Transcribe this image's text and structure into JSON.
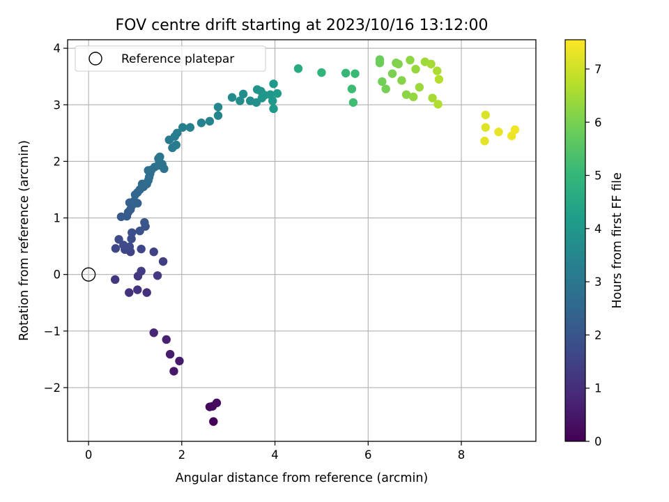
{
  "chart_data": {
    "type": "scatter",
    "title": "FOV centre drift starting at 2023/10/16 13:12:00",
    "xlabel": "Angular distance from reference (arcmin)",
    "ylabel": "Rotation from reference (arcmin)",
    "xlim": [
      -0.45,
      9.6
    ],
    "ylim": [
      -2.95,
      4.15
    ],
    "xticks": [
      {
        "value": 0,
        "label": "0"
      },
      {
        "value": 2,
        "label": "2"
      },
      {
        "value": 4,
        "label": "4"
      },
      {
        "value": 6,
        "label": "6"
      },
      {
        "value": 8,
        "label": "8"
      }
    ],
    "yticks": [
      {
        "value": -2,
        "label": "−2"
      },
      {
        "value": -1,
        "label": "−1"
      },
      {
        "value": 0,
        "label": "0"
      },
      {
        "value": 1,
        "label": "1"
      },
      {
        "value": 2,
        "label": "2"
      },
      {
        "value": 3,
        "label": "3"
      },
      {
        "value": 4,
        "label": "4"
      }
    ],
    "grid": true,
    "colormap": "viridis",
    "colorbar": {
      "label": "Hours from first FF file",
      "range": [
        0,
        7.55
      ],
      "ticks": [
        {
          "value": 0,
          "label": "0"
        },
        {
          "value": 1,
          "label": "1"
        },
        {
          "value": 2,
          "label": "2"
        },
        {
          "value": 3,
          "label": "3"
        },
        {
          "value": 4,
          "label": "4"
        },
        {
          "value": 5,
          "label": "5"
        },
        {
          "value": 6,
          "label": "6"
        },
        {
          "value": 7,
          "label": "7"
        }
      ]
    },
    "legend": {
      "placement": "top-left",
      "entries": [
        {
          "label": "Reference platepar",
          "marker": "open-circle"
        }
      ]
    },
    "reference_point": {
      "x": 0,
      "y": 0
    },
    "points": [
      {
        "x": 2.68,
        "y": -2.6,
        "t": 0.05
      },
      {
        "x": 2.6,
        "y": -2.34,
        "t": 0.15
      },
      {
        "x": 2.66,
        "y": -2.33,
        "t": 0.2
      },
      {
        "x": 2.75,
        "y": -2.27,
        "t": 0.25
      },
      {
        "x": 1.83,
        "y": -1.71,
        "t": 0.5
      },
      {
        "x": 1.95,
        "y": -1.53,
        "t": 0.55
      },
      {
        "x": 1.75,
        "y": -1.41,
        "t": 0.6
      },
      {
        "x": 1.67,
        "y": -1.15,
        "t": 0.7
      },
      {
        "x": 1.4,
        "y": -1.03,
        "t": 0.8
      },
      {
        "x": 1.25,
        "y": -0.32,
        "t": 1.05
      },
      {
        "x": 0.87,
        "y": -0.32,
        "t": 1.1
      },
      {
        "x": 1.05,
        "y": -0.27,
        "t": 1.15
      },
      {
        "x": 0.57,
        "y": -0.09,
        "t": 1.2
      },
      {
        "x": 1.06,
        "y": -0.03,
        "t": 1.25
      },
      {
        "x": 1.48,
        "y": -0.02,
        "t": 1.3
      },
      {
        "x": 1.13,
        "y": 0.06,
        "t": 1.35
      },
      {
        "x": 1.6,
        "y": 0.23,
        "t": 1.4
      },
      {
        "x": 1.4,
        "y": 0.4,
        "t": 1.5
      },
      {
        "x": 0.9,
        "y": 0.4,
        "t": 1.55
      },
      {
        "x": 0.78,
        "y": 0.44,
        "t": 1.6
      },
      {
        "x": 1.13,
        "y": 0.45,
        "t": 1.6
      },
      {
        "x": 0.58,
        "y": 0.46,
        "t": 1.65
      },
      {
        "x": 0.88,
        "y": 0.49,
        "t": 1.7
      },
      {
        "x": 0.75,
        "y": 0.52,
        "t": 1.7
      },
      {
        "x": 0.65,
        "y": 0.62,
        "t": 1.75
      },
      {
        "x": 0.92,
        "y": 0.63,
        "t": 1.8
      },
      {
        "x": 0.93,
        "y": 0.74,
        "t": 1.85
      },
      {
        "x": 1.1,
        "y": 0.77,
        "t": 1.9
      },
      {
        "x": 1.22,
        "y": 0.85,
        "t": 1.95
      },
      {
        "x": 1.2,
        "y": 0.92,
        "t": 2.0
      },
      {
        "x": 0.7,
        "y": 1.02,
        "t": 2.1
      },
      {
        "x": 0.82,
        "y": 1.03,
        "t": 2.15
      },
      {
        "x": 0.85,
        "y": 1.1,
        "t": 2.2
      },
      {
        "x": 0.9,
        "y": 1.15,
        "t": 2.25
      },
      {
        "x": 0.93,
        "y": 1.22,
        "t": 2.3
      },
      {
        "x": 0.88,
        "y": 1.27,
        "t": 2.3
      },
      {
        "x": 1.05,
        "y": 1.26,
        "t": 2.35
      },
      {
        "x": 0.98,
        "y": 1.3,
        "t": 2.4
      },
      {
        "x": 1.0,
        "y": 1.41,
        "t": 2.45
      },
      {
        "x": 1.05,
        "y": 1.45,
        "t": 2.5
      },
      {
        "x": 1.1,
        "y": 1.5,
        "t": 2.5
      },
      {
        "x": 1.18,
        "y": 1.55,
        "t": 2.55
      },
      {
        "x": 1.15,
        "y": 1.6,
        "t": 2.6
      },
      {
        "x": 1.25,
        "y": 1.6,
        "t": 2.6
      },
      {
        "x": 1.28,
        "y": 1.66,
        "t": 2.65
      },
      {
        "x": 1.3,
        "y": 1.72,
        "t": 2.7
      },
      {
        "x": 1.32,
        "y": 1.78,
        "t": 2.7
      },
      {
        "x": 1.28,
        "y": 1.84,
        "t": 2.75
      },
      {
        "x": 1.35,
        "y": 1.85,
        "t": 2.75
      },
      {
        "x": 1.42,
        "y": 1.9,
        "t": 2.8
      },
      {
        "x": 1.5,
        "y": 1.93,
        "t": 2.8
      },
      {
        "x": 1.52,
        "y": 1.99,
        "t": 2.85
      },
      {
        "x": 1.62,
        "y": 1.87,
        "t": 2.85
      },
      {
        "x": 1.58,
        "y": 1.95,
        "t": 2.9
      },
      {
        "x": 1.5,
        "y": 2.05,
        "t": 2.95
      },
      {
        "x": 1.53,
        "y": 2.08,
        "t": 2.95
      },
      {
        "x": 1.73,
        "y": 2.38,
        "t": 3.1
      },
      {
        "x": 1.8,
        "y": 2.24,
        "t": 3.1
      },
      {
        "x": 1.88,
        "y": 2.29,
        "t": 3.15
      },
      {
        "x": 1.85,
        "y": 2.44,
        "t": 3.15
      },
      {
        "x": 1.9,
        "y": 2.5,
        "t": 3.2
      },
      {
        "x": 2.02,
        "y": 2.6,
        "t": 3.25
      },
      {
        "x": 2.18,
        "y": 2.6,
        "t": 3.3
      },
      {
        "x": 2.42,
        "y": 2.68,
        "t": 3.35
      },
      {
        "x": 2.6,
        "y": 2.71,
        "t": 3.4
      },
      {
        "x": 2.78,
        "y": 2.81,
        "t": 3.45
      },
      {
        "x": 2.78,
        "y": 2.96,
        "t": 3.5
      },
      {
        "x": 3.08,
        "y": 3.13,
        "t": 3.6
      },
      {
        "x": 3.25,
        "y": 3.07,
        "t": 3.65
      },
      {
        "x": 3.32,
        "y": 3.19,
        "t": 3.7
      },
      {
        "x": 3.47,
        "y": 3.07,
        "t": 3.75
      },
      {
        "x": 3.6,
        "y": 3.04,
        "t": 3.8
      },
      {
        "x": 3.62,
        "y": 3.27,
        "t": 3.85
      },
      {
        "x": 3.72,
        "y": 3.12,
        "t": 3.9
      },
      {
        "x": 3.7,
        "y": 3.24,
        "t": 3.9
      },
      {
        "x": 3.78,
        "y": 3.17,
        "t": 3.95
      },
      {
        "x": 3.9,
        "y": 3.18,
        "t": 4.0
      },
      {
        "x": 3.95,
        "y": 3.07,
        "t": 4.0
      },
      {
        "x": 3.97,
        "y": 2.93,
        "t": 4.05
      },
      {
        "x": 3.97,
        "y": 3.37,
        "t": 4.05
      },
      {
        "x": 4.05,
        "y": 3.2,
        "t": 4.1
      },
      {
        "x": 4.5,
        "y": 3.64,
        "t": 4.6
      },
      {
        "x": 5.0,
        "y": 3.57,
        "t": 4.9
      },
      {
        "x": 5.52,
        "y": 3.56,
        "t": 5.05
      },
      {
        "x": 5.72,
        "y": 3.55,
        "t": 5.1
      },
      {
        "x": 5.65,
        "y": 3.28,
        "t": 5.15
      },
      {
        "x": 5.68,
        "y": 3.04,
        "t": 5.2
      },
      {
        "x": 6.25,
        "y": 3.8,
        "t": 5.8
      },
      {
        "x": 6.25,
        "y": 3.74,
        "t": 5.85
      },
      {
        "x": 6.3,
        "y": 3.41,
        "t": 5.9
      },
      {
        "x": 6.38,
        "y": 3.28,
        "t": 5.95
      },
      {
        "x": 6.52,
        "y": 3.55,
        "t": 6.0
      },
      {
        "x": 6.6,
        "y": 3.74,
        "t": 6.05
      },
      {
        "x": 6.65,
        "y": 3.72,
        "t": 6.1
      },
      {
        "x": 6.72,
        "y": 3.43,
        "t": 6.15
      },
      {
        "x": 6.82,
        "y": 3.18,
        "t": 6.2
      },
      {
        "x": 6.9,
        "y": 3.79,
        "t": 6.25
      },
      {
        "x": 6.97,
        "y": 3.14,
        "t": 6.3
      },
      {
        "x": 7.02,
        "y": 3.63,
        "t": 6.35
      },
      {
        "x": 7.1,
        "y": 3.31,
        "t": 6.4
      },
      {
        "x": 7.22,
        "y": 3.76,
        "t": 6.45
      },
      {
        "x": 7.35,
        "y": 3.72,
        "t": 6.5
      },
      {
        "x": 7.38,
        "y": 3.12,
        "t": 6.55
      },
      {
        "x": 7.48,
        "y": 3.6,
        "t": 6.6
      },
      {
        "x": 7.5,
        "y": 3.01,
        "t": 6.65
      },
      {
        "x": 7.52,
        "y": 3.45,
        "t": 6.7
      },
      {
        "x": 8.52,
        "y": 2.82,
        "t": 7.15
      },
      {
        "x": 8.52,
        "y": 2.6,
        "t": 7.2
      },
      {
        "x": 8.5,
        "y": 2.36,
        "t": 7.25
      },
      {
        "x": 8.8,
        "y": 2.52,
        "t": 7.3
      },
      {
        "x": 9.08,
        "y": 2.45,
        "t": 7.35
      },
      {
        "x": 9.15,
        "y": 2.56,
        "t": 7.4
      }
    ]
  }
}
